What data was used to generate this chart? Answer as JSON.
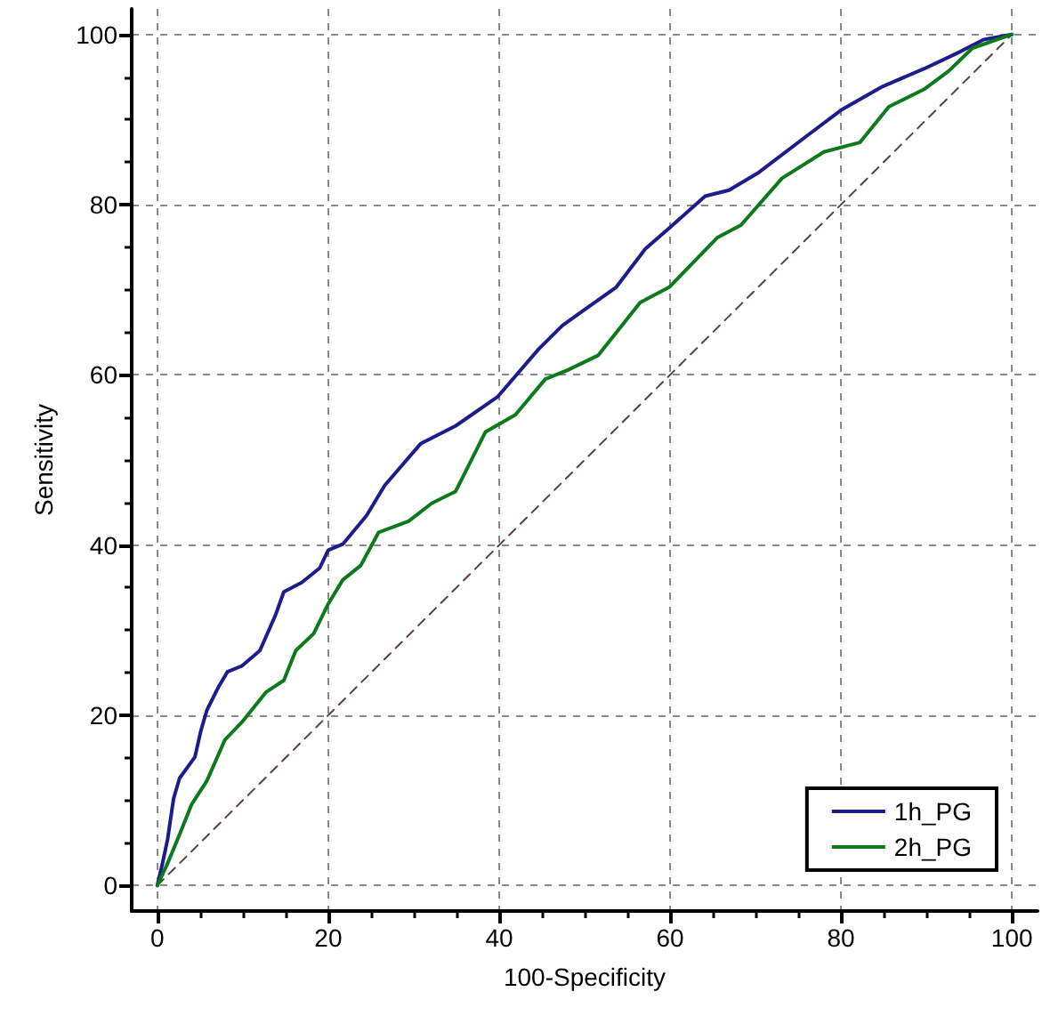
{
  "chart_data": {
    "type": "line",
    "xlabel": "100-Specificity",
    "ylabel": "Sensitivity",
    "xlim": [
      -3,
      103
    ],
    "ylim": [
      -3,
      103
    ],
    "xticks": [
      0,
      20,
      40,
      60,
      80,
      100
    ],
    "yticks": [
      0,
      20,
      40,
      60,
      80,
      100
    ],
    "grid": true,
    "legend": "bottom right",
    "marker": "none",
    "series": [
      {
        "name": "1h_PG",
        "color": "#1c1c8c",
        "line_style": "solid",
        "x": [
          0,
          0.6,
          1.2,
          1.9,
          2.6,
          4.4,
          5.1,
          5.8,
          7.2,
          8.2,
          9.9,
          12,
          13.8,
          14.8,
          16.9,
          19,
          20,
          21.7,
          24.5,
          26.6,
          30.8,
          34.9,
          39.8,
          44.6,
          47.4,
          50.2,
          53.7,
          57.1,
          60.3,
          64.1,
          66.9,
          70.4,
          75.9,
          80,
          84.9,
          89.8,
          94,
          96.7,
          100
        ],
        "values": [
          0,
          2.6,
          5.4,
          10.2,
          12.6,
          15.1,
          18.2,
          20.6,
          23.4,
          25.1,
          25.8,
          27.6,
          31.7,
          34.5,
          35.6,
          37.3,
          39.4,
          40.1,
          43.5,
          47,
          51.9,
          54,
          57.4,
          63,
          65.8,
          67.8,
          70.3,
          74.8,
          77.6,
          81,
          81.7,
          83.8,
          88,
          91.1,
          93.9,
          96,
          98,
          99.4,
          100
        ]
      },
      {
        "name": "2h_PG",
        "color": "#0c7a1c",
        "line_style": "solid",
        "x": [
          0,
          1.2,
          2.6,
          4,
          5.8,
          7.9,
          9.9,
          12.7,
          14.8,
          16.2,
          18.3,
          20,
          21.7,
          23.8,
          25.9,
          29.4,
          32.1,
          34.9,
          38.4,
          41.9,
          45.4,
          48.1,
          51.6,
          56.5,
          59.9,
          65.5,
          68.3,
          73.1,
          78,
          82.2,
          85.6,
          89.8,
          92.6,
          95.4,
          100
        ],
        "values": [
          0,
          2.6,
          6,
          9.5,
          12.3,
          17.1,
          19.2,
          22.7,
          24.1,
          27.6,
          29.6,
          33.1,
          35.9,
          37.6,
          41.5,
          42.8,
          44.9,
          46.3,
          53.3,
          55.3,
          59.5,
          60.6,
          62.3,
          68.5,
          70.3,
          76.1,
          77.6,
          83.1,
          86.2,
          87.3,
          91.5,
          93.6,
          95.7,
          98.4,
          100
        ]
      },
      {
        "color": "#5a4040",
        "line_style": "dashed",
        "x": [
          0,
          100
        ],
        "values": [
          0,
          100
        ]
      }
    ]
  }
}
